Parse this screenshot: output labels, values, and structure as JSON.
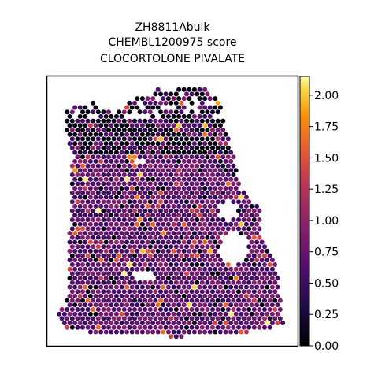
{
  "chart_data": {
    "type": "scatter",
    "subtype": "spatial-hexbin-spots",
    "title_lines": [
      "ZH8811Abulk",
      "CHEMBL1200975 score",
      "CLOCORTOLONE PIVALATE"
    ],
    "xlabel": "",
    "ylabel": "",
    "axes_ticks_visible": false,
    "grid": false,
    "colormap": "inferno",
    "colorbar": {
      "range": [
        0.0,
        2.15
      ],
      "ticks": [
        0.0,
        0.25,
        0.5,
        0.75,
        1.0,
        1.25,
        1.5,
        1.75,
        2.0
      ],
      "tick_labels": [
        "0.00",
        "0.25",
        "0.50",
        "0.75",
        "1.00",
        "1.25",
        "1.50",
        "1.75",
        "2.00"
      ],
      "placement": "right"
    },
    "value_distribution": {
      "typical_range": [
        0.3,
        0.8
      ],
      "background_regions": "dark purple (about 0.4-0.6)",
      "top_edge_values": "near 0.0 (black)",
      "hotspots_max": 2.1
    },
    "tissue_holes": [
      "lower-middle-left oval",
      "right-middle round hole",
      "small gaps near top"
    ]
  }
}
